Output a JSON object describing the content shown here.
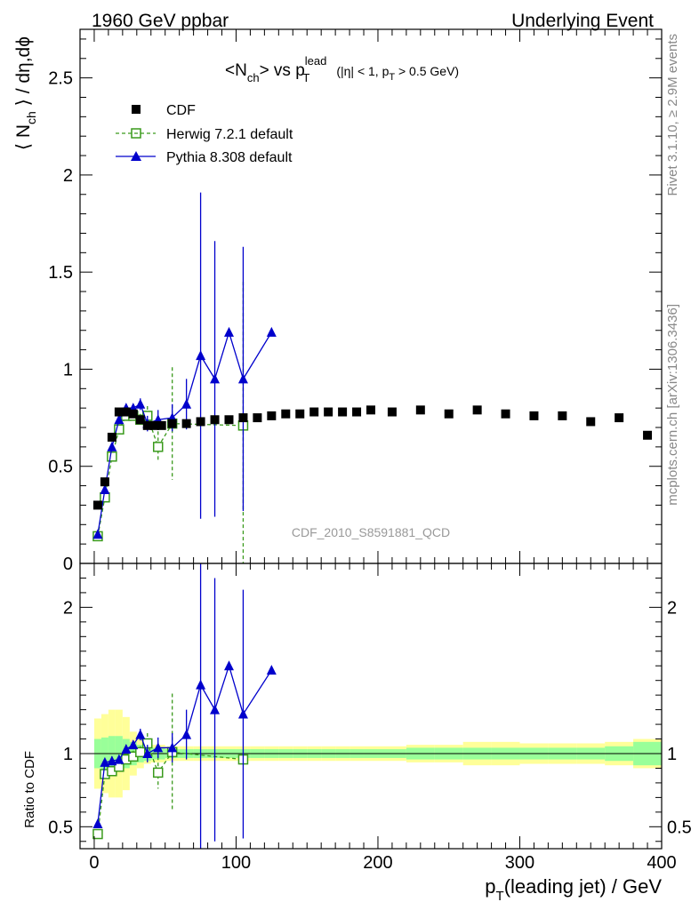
{
  "header": {
    "left": "1960 GeV ppbar",
    "right": "Underlying Event"
  },
  "side_labels": {
    "top": "Rivet 3.1.10, ≥ 2.9M events",
    "bottom": "mcplots.cern.ch [arXiv:1306.3436]"
  },
  "colors": {
    "cdf": "#000000",
    "herwig": "#3a9a1c",
    "pythia": "#0000cc",
    "band_inner": "#99ff99",
    "band_outer": "#ffff99"
  },
  "chart_data": [
    {
      "type": "scatter",
      "title_main": "<N",
      "title_main_sub": "ch",
      "title_vs": "> vs p",
      "title_sup": "lead",
      "title_sub": "T",
      "title_cut1": "(|η| < 1, p",
      "title_cut_sub": "T",
      "title_cut2": " > 0.5 GeV)",
      "ylabel": "⟨ N",
      "ylabel_sub": "ch",
      "ylabel_rest": " ⟩ / dη,dϕ",
      "watermark": "CDF_2010_S8591881_QCD",
      "xlim": [
        -10,
        400
      ],
      "ylim": [
        0,
        2.75
      ],
      "yticks": [
        "0",
        "0.5",
        "1",
        "1.5",
        "2",
        "2.5"
      ],
      "legend": {
        "cdf": "CDF",
        "herwig": "Herwig 7.2.1 default",
        "pythia": "Pythia 8.308 default"
      },
      "series": [
        {
          "name": "CDF",
          "x": [
            2.5,
            7.5,
            12.5,
            17.5,
            22.5,
            27.5,
            32.5,
            37.5,
            42.5,
            47.5,
            55,
            65,
            75,
            85,
            95,
            105,
            115,
            125,
            135,
            145,
            155,
            165,
            175,
            185,
            195,
            210,
            230,
            250,
            270,
            290,
            310,
            330,
            350,
            370,
            390
          ],
          "y": [
            0.3,
            0.42,
            0.65,
            0.78,
            0.78,
            0.77,
            0.74,
            0.71,
            0.71,
            0.71,
            0.72,
            0.72,
            0.73,
            0.74,
            0.74,
            0.75,
            0.75,
            0.76,
            0.77,
            0.77,
            0.78,
            0.78,
            0.78,
            0.78,
            0.79,
            0.78,
            0.79,
            0.77,
            0.79,
            0.77,
            0.76,
            0.76,
            0.73,
            0.75,
            0.66
          ]
        },
        {
          "name": "Herwig 7.2.1 default",
          "x": [
            2.5,
            7.5,
            12.5,
            17.5,
            22.5,
            27.5,
            32.5,
            37.5,
            45,
            55,
            105
          ],
          "y": [
            0.14,
            0.34,
            0.55,
            0.69,
            0.76,
            0.76,
            0.74,
            0.76,
            0.6,
            0.72,
            0.71
          ],
          "yerr": [
            0.01,
            0.01,
            0.02,
            0.02,
            0.03,
            0.03,
            0.03,
            0.05,
            0.08,
            0.29,
            0.74
          ]
        },
        {
          "name": "Pythia 8.308 default",
          "x": [
            2.5,
            7.5,
            12.5,
            17.5,
            22.5,
            27.5,
            32.5,
            37.5,
            45,
            55,
            65,
            75,
            85,
            95,
            105,
            125
          ],
          "y": [
            0.15,
            0.38,
            0.6,
            0.74,
            0.8,
            0.8,
            0.82,
            0.72,
            0.74,
            0.75,
            0.82,
            1.07,
            0.95,
            1.19,
            0.95,
            1.19
          ],
          "yerr": [
            0.01,
            0.01,
            0.02,
            0.02,
            0.02,
            0.02,
            0.03,
            0.04,
            0.05,
            0.07,
            0.13,
            0.84,
            0.71,
            0,
            0.68,
            0
          ]
        }
      ]
    },
    {
      "type": "scatter",
      "ylabel": "Ratio to CDF",
      "xlabel": "p",
      "xlabel_sub": "T",
      "xlabel_rest": "(leading jet) / GeV",
      "xlim": [
        -10,
        400
      ],
      "ylim": [
        0.35,
        2.3
      ],
      "yticks": [
        "0.5",
        "1",
        "2"
      ],
      "xticks": [
        "0",
        "100",
        "200",
        "300",
        "400"
      ],
      "bands": {
        "edges": [
          0,
          5,
          10,
          15,
          20,
          25,
          30,
          35,
          40,
          50,
          60,
          70,
          80,
          90,
          100,
          110,
          120,
          130,
          140,
          150,
          160,
          170,
          180,
          190,
          200,
          220,
          240,
          260,
          280,
          300,
          320,
          340,
          360,
          380,
          400
        ],
        "inner": [
          0.1,
          0.11,
          0.12,
          0.12,
          0.1,
          0.08,
          0.06,
          0.05,
          0.04,
          0.03,
          0.03,
          0.03,
          0.03,
          0.03,
          0.03,
          0.03,
          0.03,
          0.03,
          0.03,
          0.03,
          0.03,
          0.03,
          0.03,
          0.03,
          0.03,
          0.04,
          0.04,
          0.04,
          0.04,
          0.04,
          0.04,
          0.04,
          0.05,
          0.08,
          0.12
        ],
        "outer": [
          0.24,
          0.27,
          0.3,
          0.3,
          0.25,
          0.15,
          0.1,
          0.07,
          0.06,
          0.05,
          0.05,
          0.05,
          0.05,
          0.05,
          0.05,
          0.05,
          0.05,
          0.05,
          0.05,
          0.05,
          0.05,
          0.05,
          0.05,
          0.05,
          0.05,
          0.06,
          0.06,
          0.08,
          0.08,
          0.07,
          0.07,
          0.07,
          0.08,
          0.1,
          0.2
        ]
      },
      "series": [
        {
          "name": "Herwig 7.2.1 default",
          "x": [
            2.5,
            7.5,
            12.5,
            17.5,
            22.5,
            27.5,
            32.5,
            37.5,
            45,
            55,
            105
          ],
          "y": [
            0.45,
            0.86,
            0.88,
            0.91,
            0.96,
            0.98,
            1.01,
            1.07,
            0.87,
            1.01,
            0.96
          ],
          "yerr": [
            0.02,
            0.02,
            0.03,
            0.03,
            0.04,
            0.04,
            0.04,
            0.07,
            0.11,
            0.4,
            0
          ]
        },
        {
          "name": "Pythia 8.308 default",
          "x": [
            2.5,
            7.5,
            12.5,
            17.5,
            22.5,
            27.5,
            32.5,
            37.5,
            45,
            55,
            65,
            75,
            85,
            95,
            105,
            125
          ],
          "y": [
            0.52,
            0.94,
            0.95,
            0.96,
            1.03,
            1.06,
            1.13,
            1.0,
            1.04,
            1.04,
            1.13,
            1.47,
            1.3,
            1.6,
            1.27,
            1.57
          ],
          "yerr": [
            0.02,
            0.02,
            0.03,
            0.03,
            0.03,
            0.03,
            0.04,
            0.06,
            0.07,
            0.1,
            0.17,
            1.15,
            0.9,
            0,
            0.85,
            0
          ]
        }
      ]
    }
  ]
}
